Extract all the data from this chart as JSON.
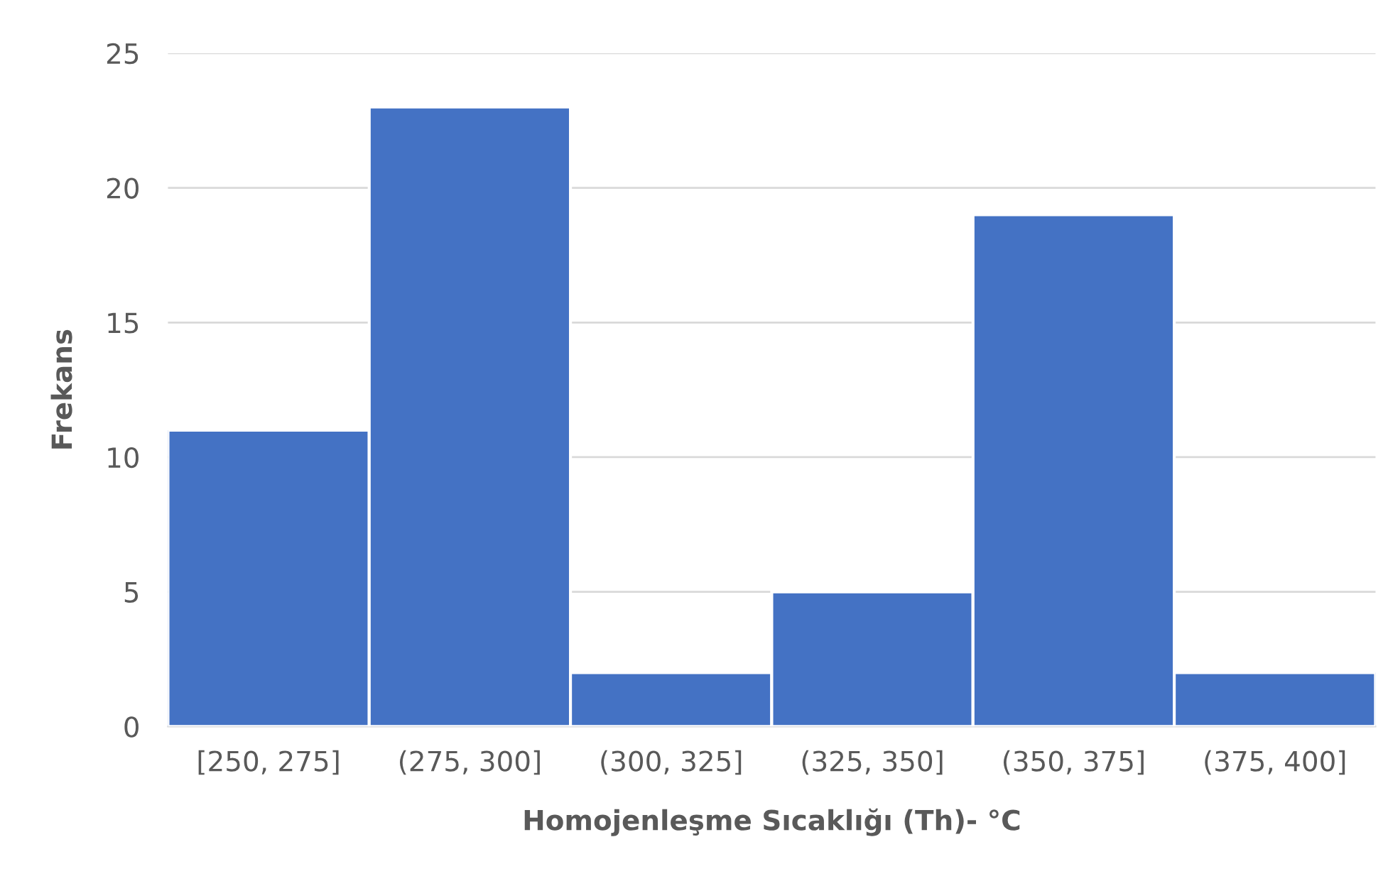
{
  "chart_data": {
    "type": "bar",
    "xlabel": "Homojenleşme Sıcaklığı (Th)- °C",
    "ylabel": "Frekans",
    "categories": [
      "[250, 275]",
      "(275, 300]",
      "(300, 325]",
      "(325, 350]",
      "(350, 375]",
      "(375, 400]"
    ],
    "values": [
      11,
      23,
      2,
      5,
      19,
      2
    ],
    "color": "#4472c4",
    "ylim": [
      0,
      25
    ],
    "yticks": [
      0,
      5,
      10,
      15,
      20,
      25
    ],
    "grid": "y"
  }
}
